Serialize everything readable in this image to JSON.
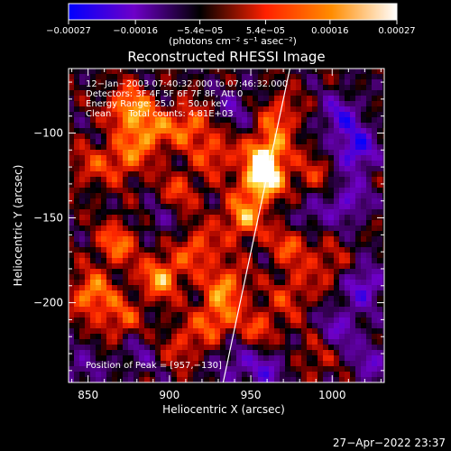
{
  "chart_data": {
    "type": "heatmap",
    "title": "Reconstructed RHESSI Image",
    "xlabel": "Heliocentric X (arcsec)",
    "ylabel": "Heliocentric Y (arcsec)",
    "xlim": [
      838,
      1032
    ],
    "ylim": [
      -247,
      -62
    ],
    "x_ticks": [
      850,
      900,
      950,
      1000
    ],
    "x_tick_labels": [
      "850",
      "900",
      "950",
      "1000"
    ],
    "y_ticks": [
      -100,
      -150,
      -200
    ],
    "y_tick_labels": [
      "−100",
      "−150",
      "−200"
    ],
    "colorbar": {
      "range": [
        -0.00027,
        0.00027
      ],
      "ticks": [
        -0.00027,
        -0.00016,
        -5.4e-05,
        5.4e-05,
        0.00016,
        0.00027
      ],
      "tick_labels": [
        "−0.00027",
        "−0.00016",
        "−5.4e−05",
        "5.4e−05",
        "0.00016",
        "0.00027"
      ],
      "unit_text": "(photons cm⁻² s⁻¹ asec⁻²)",
      "colors": [
        "#0000ff",
        "#6e00c8",
        "#000000",
        "#ff2000",
        "#ff8c00",
        "#ffffff"
      ]
    },
    "info_lines": [
      "12−Jan−2003 07:40:32.000 to 07:46:32.000",
      "Detectors: 3F 4F 5F 6F 7F 8F, Att 0",
      "Energy Range: 25.0 − 50.0 keV",
      "Clean      Total counts: 4.81E+03"
    ],
    "peak_label": "Position of Peak = [957,−130]",
    "peak": {
      "x": 957,
      "y": -130
    },
    "limb_line": {
      "x1": 974,
      "y1": -62,
      "x2": 933,
      "y2": -247
    },
    "blobs": [
      {
        "x": 957,
        "y": -128,
        "v": 1.0
      },
      {
        "x": 960,
        "y": -112,
        "v": 0.85
      },
      {
        "x": 945,
        "y": -150,
        "v": 0.7
      },
      {
        "x": 968,
        "y": -90,
        "v": 0.5
      },
      {
        "x": 875,
        "y": -85,
        "v": 0.75
      },
      {
        "x": 888,
        "y": -100,
        "v": 0.65
      },
      {
        "x": 872,
        "y": -115,
        "v": 0.55
      },
      {
        "x": 912,
        "y": -95,
        "v": 0.6
      },
      {
        "x": 928,
        "y": -112,
        "v": 0.5
      },
      {
        "x": 905,
        "y": -135,
        "v": 0.45
      },
      {
        "x": 850,
        "y": -120,
        "v": 0.35
      },
      {
        "x": 868,
        "y": -165,
        "v": 0.6
      },
      {
        "x": 895,
        "y": -185,
        "v": 0.75
      },
      {
        "x": 918,
        "y": -168,
        "v": 0.55
      },
      {
        "x": 852,
        "y": -195,
        "v": 0.7
      },
      {
        "x": 870,
        "y": -210,
        "v": 0.5
      },
      {
        "x": 935,
        "y": -190,
        "v": 0.65
      },
      {
        "x": 928,
        "y": -210,
        "v": 0.6
      },
      {
        "x": 908,
        "y": -225,
        "v": 0.4
      },
      {
        "x": 955,
        "y": -215,
        "v": 0.45
      },
      {
        "x": 975,
        "y": -195,
        "v": 0.4
      },
      {
        "x": 975,
        "y": -165,
        "v": 0.55
      },
      {
        "x": 988,
        "y": -125,
        "v": 0.35
      },
      {
        "x": 997,
        "y": -178,
        "v": 0.35
      },
      {
        "x": 990,
        "y": -232,
        "v": 0.3
      },
      {
        "x": 1005,
        "y": -90,
        "v": -0.6
      },
      {
        "x": 1015,
        "y": -110,
        "v": -0.8
      },
      {
        "x": 1010,
        "y": -140,
        "v": -0.55
      },
      {
        "x": 1020,
        "y": -190,
        "v": -0.65
      },
      {
        "x": 1005,
        "y": -215,
        "v": -0.5
      },
      {
        "x": 1025,
        "y": -235,
        "v": -0.45
      },
      {
        "x": 985,
        "y": -150,
        "v": -0.4
      },
      {
        "x": 960,
        "y": -240,
        "v": -0.5
      },
      {
        "x": 940,
        "y": -85,
        "v": -0.35
      },
      {
        "x": 845,
        "y": -240,
        "v": -0.35
      },
      {
        "x": 880,
        "y": -230,
        "v": -0.3
      },
      {
        "x": 895,
        "y": -150,
        "v": -0.3
      },
      {
        "x": 940,
        "y": -235,
        "v": -0.4
      }
    ]
  },
  "footer": {
    "timestamp": "27−Apr−2022 23:37"
  }
}
